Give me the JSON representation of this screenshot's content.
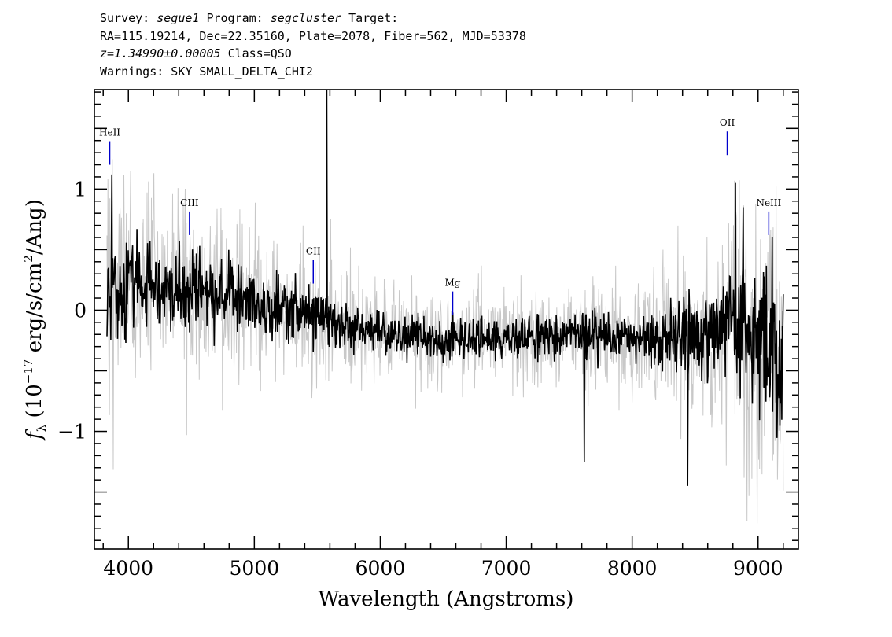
{
  "header": {
    "survey_prefix": "Survey:",
    "survey": "segue1",
    "program_prefix": "Program:",
    "program": "segcluster",
    "target_label": "Target:",
    "coords": "RA=115.19214, Dec=22.35160, Plate=2078, Fiber=562, MJD=53378",
    "redshift": "z=1.34990±0.00005",
    "class": "Class=QSO",
    "warnings": "Warnings: SKY SMALL_DELTA_CHI2"
  },
  "chart_data": {
    "type": "line",
    "xlabel": "Wavelength (Angstroms)",
    "ylabel": "f_λ (10^-17 erg/s/cm^2/Ang)",
    "xlim": [
      3730,
      9320
    ],
    "ylim": [
      -1.97,
      1.82
    ],
    "x_ticks": [
      4000,
      5000,
      6000,
      7000,
      8000,
      9000
    ],
    "y_ticks": [
      -1,
      0,
      1
    ],
    "x_tick_labels": [
      "4000",
      "5000",
      "6000",
      "7000",
      "8000",
      "9000"
    ],
    "y_tick_labels": [
      "−1",
      "0",
      "1"
    ],
    "grid": false,
    "legend": "none",
    "colors": {
      "flux": "#000000",
      "error": "#c8c8c8",
      "line_marker": "#0000cc"
    },
    "trend": {
      "x": [
        3830,
        4000,
        4250,
        4500,
        4750,
        5000,
        5250,
        5500,
        5750,
        6000,
        6500,
        7000,
        7500,
        8000,
        8300,
        8600,
        8800,
        9000,
        9200
      ],
      "flux": [
        0.15,
        0.22,
        0.2,
        0.16,
        0.1,
        0.05,
        0.0,
        -0.06,
        -0.12,
        -0.18,
        -0.25,
        -0.22,
        -0.2,
        -0.22,
        -0.25,
        -0.2,
        -0.05,
        -0.25,
        -0.45
      ],
      "error": [
        0.85,
        0.65,
        0.58,
        0.55,
        0.5,
        0.45,
        0.42,
        0.4,
        0.36,
        0.3,
        0.28,
        0.28,
        0.3,
        0.36,
        0.45,
        0.6,
        0.75,
        0.9,
        1.05
      ]
    },
    "features": [
      {
        "x": 5577,
        "y": 1.82,
        "note": "sky line spike"
      },
      {
        "x": 8820,
        "y": 1.05
      },
      {
        "x": 8880,
        "y": 0.85
      },
      {
        "x": 9110,
        "y": 0.6
      },
      {
        "x": 3870,
        "y": 1.12
      },
      {
        "x": 7620,
        "y": -1.25
      },
      {
        "x": 8440,
        "y": -1.45
      }
    ],
    "lines": [
      {
        "label": "HeII",
        "x": 3852,
        "y": 1.2
      },
      {
        "label": "CIII",
        "x": 4485,
        "y": 0.62
      },
      {
        "label": "CII",
        "x": 5468,
        "y": 0.22
      },
      {
        "label": "Mg",
        "x": 6575,
        "y": -0.04
      },
      {
        "label": "OII",
        "x": 8755,
        "y": 1.28
      },
      {
        "label": "NeIII",
        "x": 9085,
        "y": 0.62
      }
    ]
  }
}
